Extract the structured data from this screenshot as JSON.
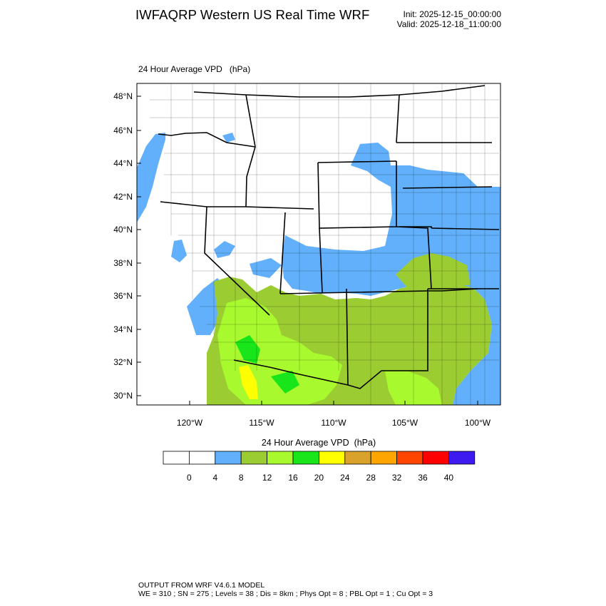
{
  "header": {
    "title": "IWFAQRP Western US Real Time WRF",
    "init": "Init: 2025-12-15_00:00:00",
    "valid": "Valid: 2025-12-18_11:00:00"
  },
  "field_label": "24 Hour Average VPD   (hPa)",
  "map": {
    "lat_labels": [
      "48°N",
      "46°N",
      "44°N",
      "42°N",
      "40°N",
      "38°N",
      "36°N",
      "34°N",
      "32°N",
      "30°N"
    ],
    "lon_labels": [
      "120°W",
      "115°W",
      "110°W",
      "105°W",
      "100°W"
    ]
  },
  "colorbar": {
    "title": "24 Hour Average VPD  (hPa)",
    "labels": [
      "0",
      "4",
      "8",
      "12",
      "16",
      "20",
      "24",
      "28",
      "32",
      "36",
      "40"
    ],
    "colors": [
      "#ffffff",
      "#ffffff",
      "#62b0fb",
      "#9bcc32",
      "#a8fa2f",
      "#18e61a",
      "#ffff00",
      "#d9a32b",
      "#ffa500",
      "#ff4500",
      "#ff0000",
      "#3e1af0"
    ]
  },
  "footer": {
    "line1": "OUTPUT FROM WRF V4.6.1 MODEL",
    "line2": "WE = 310 ; SN = 275 ; Levels = 38 ; Dis = 8km ; Phys Opt = 8 ; PBL Opt = 1 ; Cu Opt = 3"
  }
}
